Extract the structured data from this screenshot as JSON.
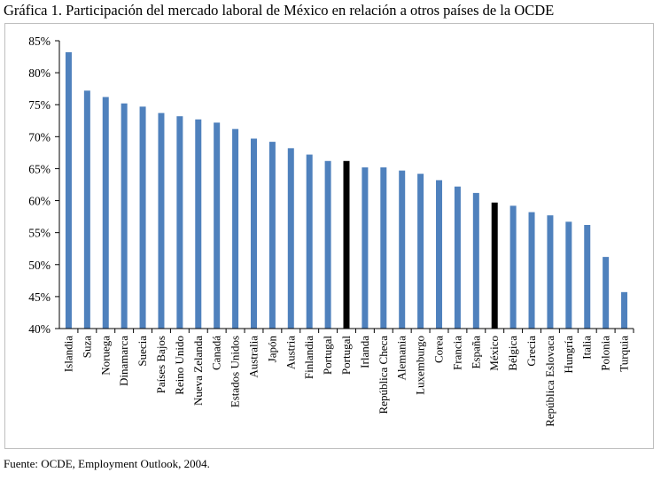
{
  "title": "Gráfica 1. Participación del mercado laboral de México en relación a otros países de la OCDE",
  "source": "Fuente: OCDE, Employment Outlook, 2004.",
  "chart_data": {
    "type": "bar",
    "categories": [
      "Islandia",
      "Suza",
      "Noruega",
      "Dinamarca",
      "Suecia",
      "Países Bajos",
      "Reino Unido",
      "Nueva Zelanda",
      "Canadá",
      "Estados Unidos",
      "Australia",
      "Japón",
      "Austria",
      "Finlandia",
      "Portugal",
      "Portugal",
      "Irlanda",
      "República Checa",
      "Alemania",
      "Luxemburgo",
      "Corea",
      "Francia",
      "España",
      "México",
      "Bélgica",
      "Grecia",
      "República Eslovaca",
      "Hungría",
      "Italia",
      "Polonia",
      "Turquia"
    ],
    "values": [
      83.2,
      77.2,
      76.2,
      75.2,
      74.7,
      73.7,
      73.2,
      72.7,
      72.2,
      71.2,
      69.7,
      69.2,
      68.2,
      67.2,
      66.2,
      66.2,
      65.2,
      65.2,
      64.7,
      64.2,
      63.2,
      62.2,
      61.2,
      59.7,
      59.2,
      58.2,
      57.7,
      56.7,
      56.2,
      51.2,
      45.7
    ],
    "highlight_indices": [
      15,
      23
    ],
    "bar_color": "#4f81bd",
    "highlight_color": "#000000",
    "ylim": [
      40,
      85
    ],
    "yticks": [
      "40%",
      "45%",
      "50%",
      "55%",
      "60%",
      "65%",
      "70%",
      "75%",
      "80%",
      "85%"
    ],
    "xlabel": "",
    "ylabel": "",
    "grid": false,
    "legend": "none"
  }
}
